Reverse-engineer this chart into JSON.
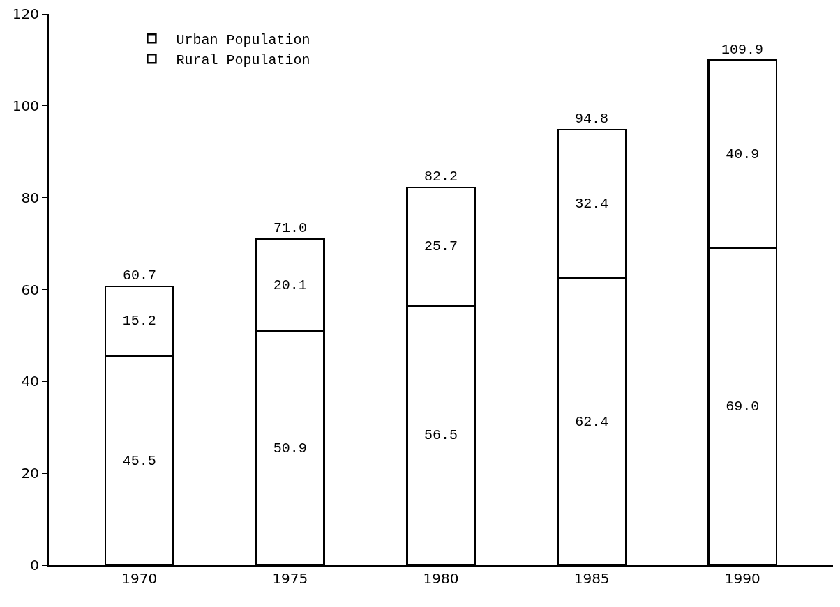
{
  "chart_data": {
    "type": "bar",
    "stacked": true,
    "categories": [
      "1970",
      "1975",
      "1980",
      "1985",
      "1990"
    ],
    "series": [
      {
        "name": "Rural Population",
        "color": "#ffffff",
        "values": [
          45.5,
          50.9,
          56.5,
          62.4,
          69.0
        ],
        "value_labels": [
          "45.5",
          "50.9",
          "56.5",
          "62.4",
          "69.0"
        ]
      },
      {
        "name": "Urban Population",
        "color": "#ffffff",
        "values": [
          15.2,
          20.1,
          25.7,
          32.4,
          40.9
        ],
        "value_labels": [
          "15.2",
          "20.1",
          "25.7",
          "32.4",
          "40.9"
        ]
      }
    ],
    "totals": [
      "60.7",
      "71.0",
      "82.2",
      "94.8",
      "109.9"
    ],
    "ylim": [
      0,
      120
    ],
    "yticks": [
      0,
      20,
      40,
      60,
      80,
      100,
      120
    ],
    "grid": false,
    "legend": "top left"
  }
}
